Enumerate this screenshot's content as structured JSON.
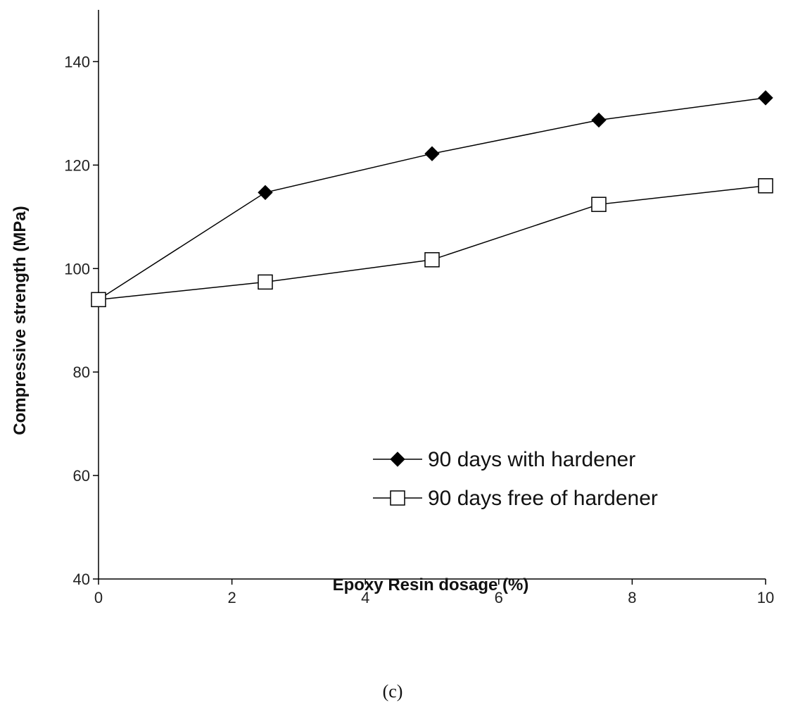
{
  "chart_data": {
    "type": "line",
    "title": "",
    "xlabel": "Epoxy Resin dosage (%)",
    "ylabel": "Compressive strength (MPa)",
    "xlim": [
      0,
      10
    ],
    "ylim": [
      40,
      150
    ],
    "xticks": [
      0,
      2,
      4,
      6,
      8,
      10
    ],
    "yticks": [
      40,
      60,
      80,
      100,
      120,
      140
    ],
    "grid": false,
    "legend_position": "bottom-right",
    "x": [
      0,
      2.5,
      5,
      7.5,
      10
    ],
    "series": [
      {
        "name": "90 days with hardener",
        "marker": "filled-diamond",
        "color": "#000000",
        "values": [
          94,
          114.7,
          122.2,
          128.7,
          133
        ]
      },
      {
        "name": "90 days free of hardener",
        "marker": "open-square",
        "color": "#000000",
        "values": [
          94,
          97.4,
          101.7,
          112.4,
          116
        ]
      }
    ]
  },
  "caption": "(c)"
}
